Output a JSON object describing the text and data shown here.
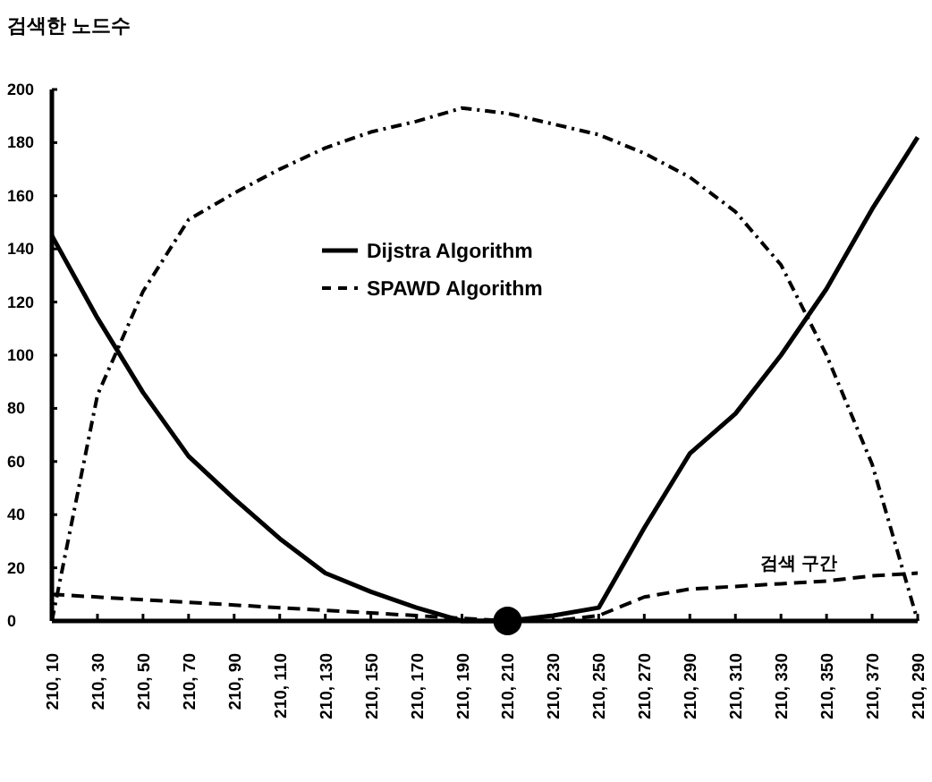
{
  "chart_data": {
    "type": "line",
    "ylabel": "검색한 노드수",
    "categories": [
      "210, 10",
      "210, 30",
      "210, 50",
      "210, 70",
      "210, 90",
      "210, 110",
      "210, 130",
      "210, 150",
      "210, 170",
      "210, 190",
      "210, 210",
      "210, 230",
      "210, 250",
      "210, 270",
      "210, 290",
      "210, 310",
      "210, 330",
      "210, 350",
      "210, 370",
      "210, 290"
    ],
    "series": [
      {
        "name": "Dijstra Algorithm",
        "color": "#000000",
        "line_style": "solid",
        "values": [
          145,
          114,
          86,
          62,
          46,
          31,
          18,
          11,
          5,
          0,
          0,
          2,
          5,
          35,
          63,
          78,
          100,
          125,
          155,
          182
        ]
      },
      {
        "name": "SPAWD Algorithm",
        "color": "#000000",
        "line_style": "dashed",
        "values": [
          10,
          9,
          8,
          7,
          6,
          5,
          4,
          3,
          2,
          1,
          0,
          0,
          2,
          9,
          12,
          13,
          14,
          15,
          17,
          18
        ]
      },
      {
        "color": "#000000",
        "line_style": "dotted",
        "values": [
          0,
          85,
          124,
          151,
          161,
          170,
          178,
          184,
          188,
          193,
          191,
          187,
          183,
          176,
          167,
          154,
          134,
          100,
          59,
          0
        ]
      },
      {
        "type": "scatter",
        "color": "#000000",
        "marker": "circle",
        "x": [
          "210, 210"
        ],
        "values": [
          0
        ]
      }
    ],
    "ylim": [
      0,
      200
    ],
    "yticks": [
      0,
      20,
      40,
      60,
      80,
      100,
      120,
      140,
      160,
      180,
      200
    ],
    "legend": "center",
    "grid": false,
    "annotations": [
      "검색 구간"
    ]
  }
}
